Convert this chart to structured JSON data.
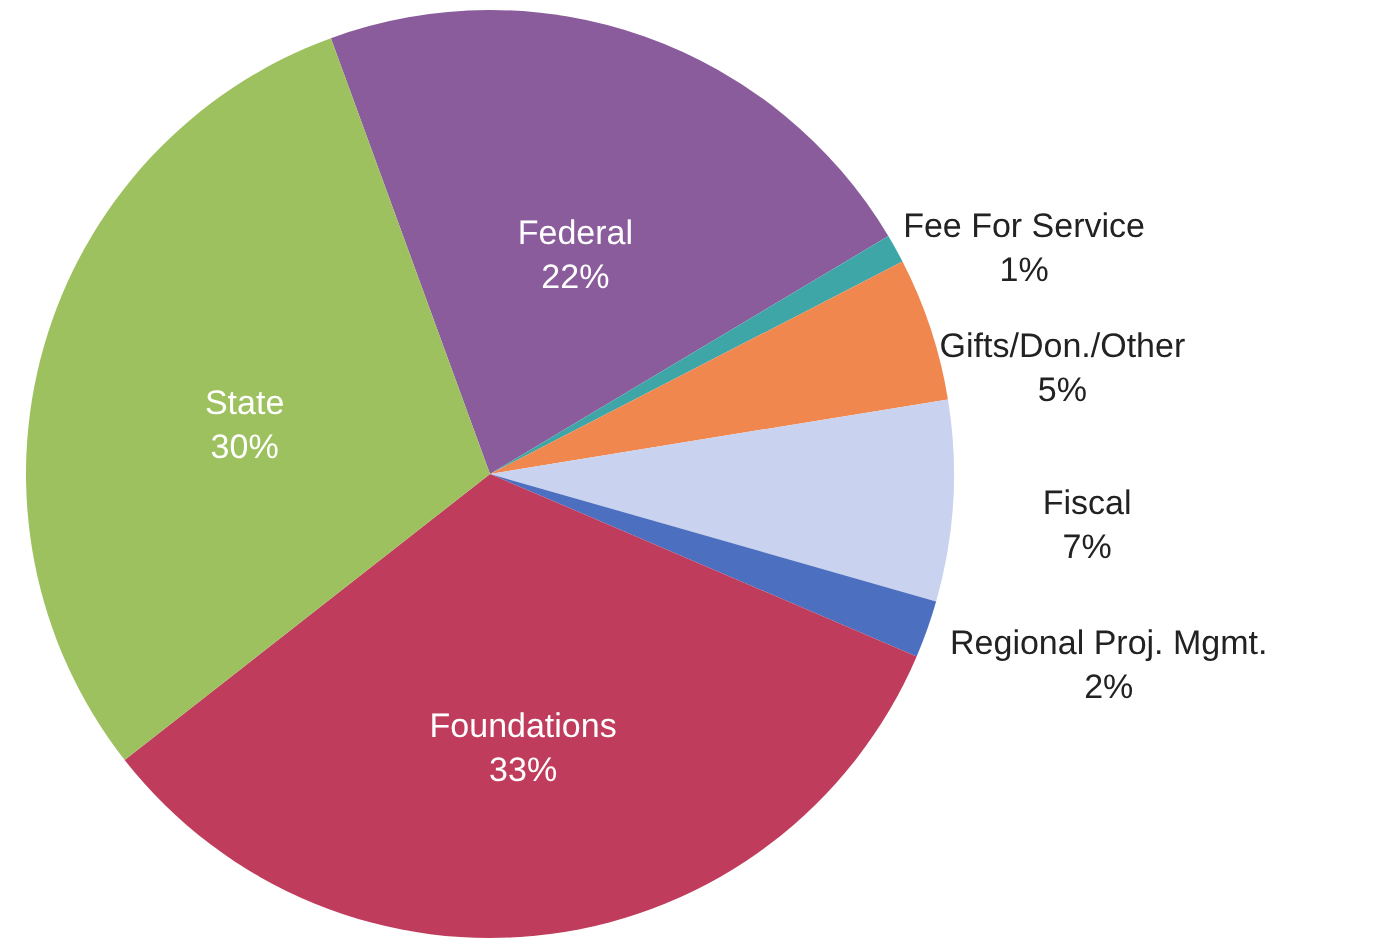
{
  "chart_data": {
    "type": "pie",
    "categories": [
      "Federal",
      "Fee For Service",
      "Gifts/Don./Other",
      "Fiscal",
      "Regional Proj. Mgmt.",
      "Foundations",
      "State"
    ],
    "values": [
      22,
      1,
      5,
      7,
      2,
      33,
      30
    ],
    "value_labels": [
      "22%",
      "1%",
      "5%",
      "7%",
      "2%",
      "33%",
      "30%"
    ],
    "colors": [
      "#8a5c9c",
      "#3fa6a8",
      "#f0874e",
      "#c9d2ee",
      "#4c6fc0",
      "#c03c5c",
      "#9dc15e"
    ]
  }
}
